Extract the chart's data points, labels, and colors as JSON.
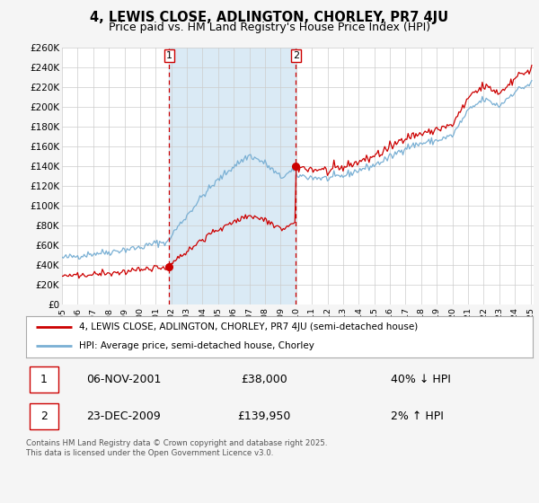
{
  "title": "4, LEWIS CLOSE, ADLINGTON, CHORLEY, PR7 4JU",
  "subtitle": "Price paid vs. HM Land Registry's House Price Index (HPI)",
  "ylim": [
    0,
    260000
  ],
  "yticks": [
    0,
    20000,
    40000,
    60000,
    80000,
    100000,
    120000,
    140000,
    160000,
    180000,
    200000,
    220000,
    240000,
    260000
  ],
  "ytick_labels": [
    "£0",
    "£20K",
    "£40K",
    "£60K",
    "£80K",
    "£100K",
    "£120K",
    "£140K",
    "£160K",
    "£180K",
    "£200K",
    "£220K",
    "£240K",
    "£260K"
  ],
  "sale1_date": 2001.85,
  "sale1_price": 38000,
  "sale2_date": 2009.98,
  "sale2_price": 139950,
  "sale1_date_str": "06-NOV-2001",
  "sale1_price_str": "£38,000",
  "sale1_hpi_str": "40% ↓ HPI",
  "sale2_date_str": "23-DEC-2009",
  "sale2_price_str": "£139,950",
  "sale2_hpi_str": "2% ↑ HPI",
  "property_line_color": "#cc0000",
  "hpi_line_color": "#7ab0d4",
  "background_color": "#f5f5f5",
  "plot_bg_color": "#ffffff",
  "grid_color": "#cccccc",
  "vline_color": "#cc0000",
  "shade_color": "#daeaf5",
  "legend_label_property": "4, LEWIS CLOSE, ADLINGTON, CHORLEY, PR7 4JU (semi-detached house)",
  "legend_label_hpi": "HPI: Average price, semi-detached house, Chorley",
  "footnote": "Contains HM Land Registry data © Crown copyright and database right 2025.\nThis data is licensed under the Open Government Licence v3.0."
}
